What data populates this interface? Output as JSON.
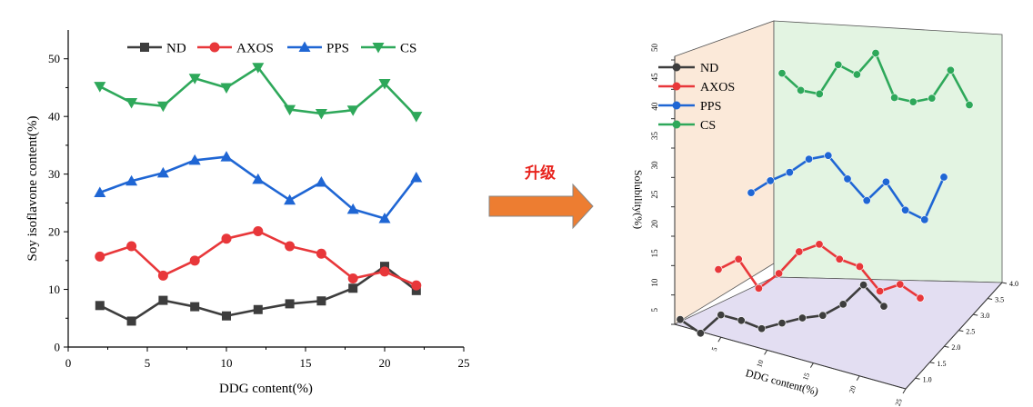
{
  "upgrade_label": "升级",
  "colors": {
    "ND": "#3d3d3d",
    "AXOS": "#e8373a",
    "PPS": "#1f66d4",
    "CS": "#2ea85a",
    "arrow_fill": "#ed7d31",
    "left_wall": "#fbe9d9",
    "right_wall": "#e3f4e2",
    "floor": "#e3def2"
  },
  "chart_data": [
    {
      "type": "line",
      "xlabel": "DDG content(%)",
      "ylabel": "Soy isoflavone content(%)",
      "xlim": [
        0,
        25
      ],
      "ylim": [
        0,
        55
      ],
      "xticks": [
        0,
        5,
        10,
        15,
        20,
        25
      ],
      "yticks": [
        0,
        10,
        20,
        30,
        40,
        50
      ],
      "legend_position": "top",
      "grid": false,
      "x": [
        2,
        4,
        6,
        8,
        10,
        12,
        14,
        16,
        18,
        20,
        22
      ],
      "series": [
        {
          "name": "ND",
          "marker": "square",
          "values": [
            7.2,
            4.5,
            8.1,
            7.0,
            5.4,
            6.5,
            7.5,
            8.0,
            10.2,
            14.0,
            9.8
          ]
        },
        {
          "name": "AXOS",
          "marker": "circle",
          "values": [
            15.7,
            17.5,
            12.4,
            15.0,
            18.8,
            20.1,
            17.5,
            16.2,
            11.9,
            13.1,
            10.7
          ]
        },
        {
          "name": "PPS",
          "marker": "triangle-up",
          "values": [
            26.8,
            28.8,
            30.2,
            32.4,
            33.0,
            29.1,
            25.5,
            28.6,
            23.9,
            22.3,
            29.4
          ]
        },
        {
          "name": "CS",
          "marker": "triangle-down",
          "values": [
            45.2,
            42.4,
            41.8,
            46.6,
            45.0,
            48.5,
            41.2,
            40.5,
            41.1,
            45.7,
            40.0
          ]
        }
      ]
    },
    {
      "type": "line",
      "variant": "3d",
      "xlabel": "DDG content(%)",
      "ylabel": "Solubility(%)",
      "zlim": [
        5,
        50
      ],
      "zticks": [
        5,
        10,
        15,
        20,
        25,
        30,
        35,
        40,
        45,
        50
      ],
      "xticks": [
        5,
        10,
        15,
        20,
        25
      ],
      "depth_ticks": [
        "1.0",
        "1.5",
        "2.0",
        "2.5",
        "3.0",
        "3.5",
        "4.0"
      ],
      "legend_position": "top-left",
      "x": [
        2,
        4,
        6,
        8,
        10,
        12,
        14,
        16,
        18,
        20,
        22
      ],
      "series": [
        {
          "name": "ND",
          "values": [
            7.2,
            4.5,
            8.1,
            7.0,
            5.4,
            6.5,
            7.5,
            8.0,
            10.2,
            14.0,
            9.8
          ]
        },
        {
          "name": "AXOS",
          "values": [
            15.7,
            17.5,
            12.4,
            15.0,
            18.8,
            20.1,
            17.5,
            16.2,
            11.9,
            13.1,
            10.7
          ]
        },
        {
          "name": "PPS",
          "values": [
            26.8,
            28.8,
            30.2,
            32.4,
            33.0,
            29.1,
            25.5,
            28.6,
            23.9,
            22.3,
            29.4
          ]
        },
        {
          "name": "CS",
          "values": [
            45.2,
            42.4,
            41.8,
            46.6,
            45.0,
            48.5,
            41.2,
            40.5,
            41.1,
            45.7,
            40.0
          ]
        }
      ]
    }
  ]
}
